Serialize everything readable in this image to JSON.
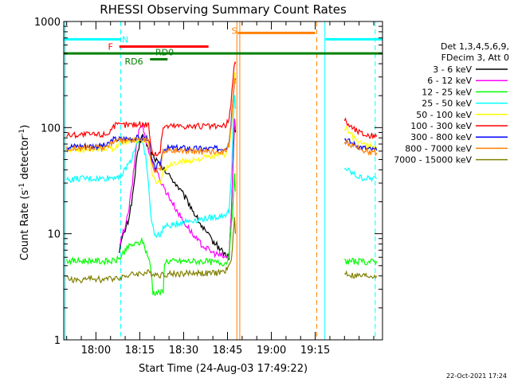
{
  "chart_data": {
    "type": "line",
    "title": "RHESSI Observing Summary Count Rates",
    "xlabel": "Start Time (24-Aug-03 17:49:22)",
    "ylabel_prefix": "Count Rate (s",
    "ylabel_sup": "-1",
    "ylabel_suffix": " detector",
    "ylabel_close": ")",
    "yscale": "log",
    "ylim": [
      1,
      1000
    ],
    "xlim_minutes": [
      -11,
      98
    ],
    "x_unit": "minutes after 18:00 UT",
    "x_ticks": [
      {
        "t": 0,
        "label": "18:00"
      },
      {
        "t": 15,
        "label": "18:15"
      },
      {
        "t": 30,
        "label": "18:30"
      },
      {
        "t": 45,
        "label": "18:45"
      },
      {
        "t": 60,
        "label": "19:00"
      },
      {
        "t": 75,
        "label": "19:15"
      }
    ],
    "y_ticks": [
      {
        "v": 1,
        "label": "1"
      },
      {
        "v": 10,
        "label": "10"
      },
      {
        "v": 100,
        "label": "100"
      },
      {
        "v": 1000,
        "label": "1000"
      }
    ],
    "legend_header": [
      "Det 1,3,4,5,6,9,",
      "FDecim 3, Att 0"
    ],
    "series": [
      {
        "name": "3 - 6 keV",
        "color": "#000000",
        "points": [
          [
            8,
            7
          ],
          [
            9,
            9
          ],
          [
            11,
            13
          ],
          [
            12.5,
            22
          ],
          [
            14,
            50
          ],
          [
            15,
            72
          ],
          [
            16,
            85
          ],
          [
            17,
            75
          ],
          [
            18,
            62
          ],
          [
            20,
            52
          ],
          [
            22,
            44
          ],
          [
            24,
            38
          ],
          [
            26,
            33
          ],
          [
            28,
            28
          ],
          [
            30,
            23
          ],
          [
            32,
            19
          ],
          [
            34,
            15
          ],
          [
            36,
            12
          ],
          [
            38,
            10
          ],
          [
            40,
            8.5
          ],
          [
            42,
            7.5
          ],
          [
            44,
            6.5
          ],
          [
            45.5,
            6
          ],
          [
            46.3,
            15
          ],
          [
            47,
            55
          ],
          [
            47.4,
            120
          ],
          [
            47.7,
            90
          ],
          [
            47.8,
            null
          ],
          [
            85,
            null
          ]
        ]
      },
      {
        "name": "6 - 12 keV",
        "color": "#ff00ff",
        "points": [
          [
            8,
            7.5
          ],
          [
            9,
            9.5
          ],
          [
            11,
            15
          ],
          [
            12.5,
            30
          ],
          [
            14,
            75
          ],
          [
            15,
            100
          ],
          [
            16,
            105
          ],
          [
            17,
            80
          ],
          [
            18,
            60
          ],
          [
            20,
            42
          ],
          [
            22,
            32
          ],
          [
            24,
            25
          ],
          [
            26,
            20
          ],
          [
            28,
            16
          ],
          [
            30,
            13
          ],
          [
            32,
            11
          ],
          [
            34,
            9
          ],
          [
            36,
            8
          ],
          [
            38,
            7.2
          ],
          [
            40,
            6.6
          ],
          [
            42,
            6.3
          ],
          [
            44,
            6
          ],
          [
            45.5,
            6
          ],
          [
            46.3,
            15
          ],
          [
            47,
            60
          ],
          [
            47.4,
            130
          ],
          [
            47.7,
            95
          ],
          [
            47.8,
            null
          ]
        ]
      },
      {
        "name": "12 - 25 keV",
        "color": "#00ff00",
        "points": [
          [
            -10,
            5.6
          ],
          [
            -6,
            5.5
          ],
          [
            -2,
            5.6
          ],
          [
            2,
            5.5
          ],
          [
            6,
            5.5
          ],
          [
            8,
            5.8
          ],
          [
            10,
            7
          ],
          [
            12,
            7.8
          ],
          [
            14,
            8
          ],
          [
            16,
            8.5
          ],
          [
            17,
            7
          ],
          [
            18,
            6
          ],
          [
            19,
            4.2
          ],
          [
            19.5,
            2.8
          ],
          [
            20,
            2.8
          ],
          [
            23,
            2.8
          ],
          [
            23.5,
            5.5
          ],
          [
            28,
            5.5
          ],
          [
            32,
            5.5
          ],
          [
            36,
            5.5
          ],
          [
            40,
            5.4
          ],
          [
            44,
            5.3
          ],
          [
            45,
            5.5
          ],
          [
            46,
            9
          ],
          [
            47,
            20
          ],
          [
            47.4,
            35
          ],
          [
            47.7,
            25
          ],
          [
            47.8,
            null
          ],
          [
            85,
            5.5
          ],
          [
            88,
            5.5
          ],
          [
            92,
            5.4
          ],
          [
            96,
            5.5
          ]
        ]
      },
      {
        "name": "25 - 50 keV",
        "color": "#00ffff",
        "points": [
          [
            -10,
            32
          ],
          [
            -6,
            33
          ],
          [
            -2,
            33
          ],
          [
            2,
            33
          ],
          [
            6,
            34
          ],
          [
            9,
            36
          ],
          [
            12,
            50
          ],
          [
            14,
            72
          ],
          [
            15,
            80
          ],
          [
            16,
            70
          ],
          [
            17,
            55
          ],
          [
            18,
            28
          ],
          [
            19,
            13
          ],
          [
            20,
            10
          ],
          [
            22,
            9.5
          ],
          [
            23,
            11.5
          ],
          [
            26,
            12
          ],
          [
            30,
            13
          ],
          [
            34,
            13.5
          ],
          [
            38,
            14
          ],
          [
            42,
            14.5
          ],
          [
            44,
            15
          ],
          [
            45.5,
            16
          ],
          [
            46.5,
            45
          ],
          [
            47.2,
            160
          ],
          [
            47.5,
            200
          ],
          [
            47.7,
            150
          ],
          [
            47.8,
            null
          ],
          [
            85,
            42
          ],
          [
            87,
            38
          ],
          [
            90,
            34
          ],
          [
            93,
            33
          ],
          [
            96,
            33
          ]
        ]
      },
      {
        "name": "50 - 100 keV",
        "color": "#ffff00",
        "points": [
          [
            -10,
            62
          ],
          [
            -6,
            62
          ],
          [
            -2,
            63
          ],
          [
            2,
            63
          ],
          [
            6,
            64
          ],
          [
            8,
            70
          ],
          [
            10,
            74
          ],
          [
            12,
            75
          ],
          [
            14,
            76
          ],
          [
            16,
            76
          ],
          [
            18,
            76
          ],
          [
            19,
            40
          ],
          [
            20,
            32
          ],
          [
            22,
            30
          ],
          [
            23,
            40
          ],
          [
            26,
            45
          ],
          [
            30,
            48
          ],
          [
            34,
            50
          ],
          [
            38,
            52
          ],
          [
            42,
            54
          ],
          [
            44,
            56
          ],
          [
            45.5,
            65
          ],
          [
            46.5,
            120
          ],
          [
            47.2,
            280
          ],
          [
            47.5,
            330
          ],
          [
            47.7,
            300
          ],
          [
            47.8,
            null
          ],
          [
            85,
            100
          ],
          [
            86,
            95
          ],
          [
            88,
            80
          ],
          [
            91,
            70
          ],
          [
            94,
            66
          ],
          [
            96,
            64
          ]
        ]
      },
      {
        "name": "100 - 300 keV",
        "color": "#ff0000",
        "points": [
          [
            -10,
            85
          ],
          [
            -6,
            86
          ],
          [
            -2,
            86
          ],
          [
            2,
            86
          ],
          [
            4,
            88
          ],
          [
            5,
            95
          ],
          [
            6,
            104
          ],
          [
            9,
            106
          ],
          [
            12,
            107
          ],
          [
            16,
            108
          ],
          [
            18,
            108
          ],
          [
            19,
            62
          ],
          [
            20,
            55
          ],
          [
            22,
            60
          ],
          [
            23,
            103
          ],
          [
            26,
            104
          ],
          [
            30,
            104
          ],
          [
            34,
            103
          ],
          [
            38,
            103
          ],
          [
            42,
            102
          ],
          [
            44,
            103
          ],
          [
            45.5,
            115
          ],
          [
            46.5,
            210
          ],
          [
            47.2,
            380
          ],
          [
            47.5,
            420
          ],
          [
            47.7,
            400
          ],
          [
            47.8,
            null
          ],
          [
            85,
            120
          ],
          [
            86,
            110
          ],
          [
            88,
            98
          ],
          [
            91,
            88
          ],
          [
            94,
            84
          ],
          [
            96,
            82
          ]
        ]
      },
      {
        "name": "300 - 800 keV",
        "color": "#0000ff",
        "points": [
          [
            -10,
            66
          ],
          [
            -6,
            67
          ],
          [
            -2,
            67
          ],
          [
            2,
            67
          ],
          [
            4,
            68
          ],
          [
            5,
            74
          ],
          [
            6,
            77
          ],
          [
            9,
            78
          ],
          [
            12,
            79
          ],
          [
            16,
            80
          ],
          [
            18,
            80
          ],
          [
            19,
            50
          ],
          [
            20,
            42
          ],
          [
            22,
            45
          ],
          [
            23,
            63
          ],
          [
            26,
            64
          ],
          [
            30,
            64
          ],
          [
            34,
            63
          ],
          [
            38,
            63
          ],
          [
            42,
            63
          ],
          [
            44,
            64
          ],
          [
            45.5,
            72
          ],
          [
            46.5,
            140
          ],
          [
            47.2,
            250
          ],
          [
            47.5,
            300
          ],
          [
            47.7,
            280
          ],
          [
            47.8,
            null
          ],
          [
            85,
            80
          ],
          [
            86,
            76
          ],
          [
            88,
            70
          ],
          [
            91,
            65
          ],
          [
            94,
            62
          ],
          [
            96,
            61
          ]
        ]
      },
      {
        "name": "800 - 7000 keV",
        "color": "#ff8000",
        "points": [
          [
            -10,
            63
          ],
          [
            -6,
            64
          ],
          [
            -2,
            64
          ],
          [
            2,
            65
          ],
          [
            4,
            66
          ],
          [
            5,
            71
          ],
          [
            6,
            74
          ],
          [
            9,
            75
          ],
          [
            12,
            76
          ],
          [
            16,
            77
          ],
          [
            18,
            77
          ],
          [
            19,
            45
          ],
          [
            20,
            38
          ],
          [
            22,
            42
          ],
          [
            23,
            60
          ],
          [
            26,
            61
          ],
          [
            30,
            61
          ],
          [
            34,
            60
          ],
          [
            38,
            60
          ],
          [
            42,
            60
          ],
          [
            44,
            61
          ],
          [
            45.5,
            68
          ],
          [
            46.5,
            130
          ],
          [
            47.2,
            230
          ],
          [
            47.5,
            280
          ],
          [
            47.7,
            260
          ],
          [
            47.8,
            null
          ],
          [
            85,
            75
          ],
          [
            86,
            72
          ],
          [
            88,
            66
          ],
          [
            91,
            62
          ],
          [
            94,
            59
          ],
          [
            96,
            58
          ]
        ]
      },
      {
        "name": "7000 - 15000 keV",
        "color": "#808000",
        "points": [
          [
            -10,
            3.8
          ],
          [
            -6,
            3.6
          ],
          [
            -2,
            3.8
          ],
          [
            2,
            3.7
          ],
          [
            6,
            3.8
          ],
          [
            10,
            4
          ],
          [
            14,
            4.2
          ],
          [
            18,
            4.3
          ],
          [
            22,
            4.1
          ],
          [
            26,
            4.2
          ],
          [
            30,
            4.2
          ],
          [
            34,
            4.3
          ],
          [
            38,
            4.2
          ],
          [
            42,
            4.3
          ],
          [
            44,
            4.4
          ],
          [
            45.5,
            4.8
          ],
          [
            46.3,
            6
          ],
          [
            47,
            10
          ],
          [
            47.4,
            14
          ],
          [
            47.7,
            10
          ],
          [
            47.8,
            null
          ],
          [
            85,
            4.3
          ],
          [
            88,
            4
          ],
          [
            92,
            4
          ],
          [
            96,
            4
          ]
        ]
      }
    ],
    "flags": [
      {
        "label": "N",
        "color": "#00ffff",
        "y": 680,
        "segments": [
          [
            -11,
            8.5
          ],
          [
            78.5,
            98
          ]
        ],
        "label_t": 10
      },
      {
        "label": "S",
        "color": "#ff8000",
        "y": 780,
        "segments": [
          [
            48.5,
            75
          ]
        ],
        "label_t": 47.3,
        "label_y": 820
      },
      {
        "label": "F",
        "color": "#ff0000",
        "y": 580,
        "segments": [
          [
            8,
            38.5
          ]
        ],
        "label_t": 5
      },
      {
        "label": "RD0",
        "color": "#008000",
        "y": 500,
        "segments": [
          [
            -11,
            98
          ]
        ],
        "label_t": 23.5,
        "label_y": 515
      },
      {
        "label": "RD6",
        "color": "#008000",
        "y": 440,
        "segments": [
          [
            18.5,
            24.5
          ]
        ],
        "label_t": 13,
        "label_y": 420
      }
    ],
    "vlines": [
      {
        "t": -10.5,
        "color": "#00ffff",
        "style": "solid"
      },
      {
        "t": 8.5,
        "color": "#00ffff",
        "style": "dashed"
      },
      {
        "t": 78.3,
        "color": "#00ffff",
        "style": "solid"
      },
      {
        "t": 95.5,
        "color": "#00ffff",
        "style": "dashed"
      },
      {
        "t": 48.2,
        "color": "#ff8000",
        "style": "solid"
      },
      {
        "t": 49.2,
        "color": "#ff8000",
        "style": "solid"
      },
      {
        "t": 75.5,
        "color": "#ff8000",
        "style": "dashed"
      }
    ],
    "annotations": [
      "22-Oct-2021 17:24"
    ]
  }
}
